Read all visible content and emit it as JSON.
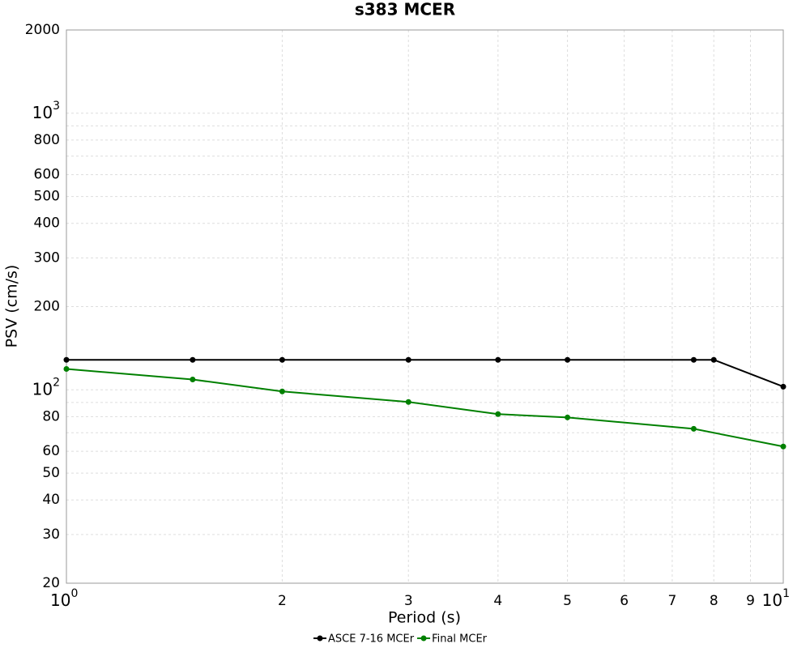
{
  "chart_data": {
    "type": "line",
    "title": "s383 MCER",
    "x_label": "Period (s)",
    "y_label": "PSV (cm/s)",
    "x_scale": "log",
    "y_scale": "log",
    "grid": true,
    "legend": "bottom",
    "xlim": [
      1,
      10
    ],
    "ylim": [
      20,
      2000
    ],
    "xticks": [
      {
        "value": 1,
        "label": "10",
        "exponent": "0"
      },
      2,
      3,
      4,
      5,
      6,
      7,
      8,
      9,
      {
        "value": 10,
        "label": "10",
        "exponent": "1"
      }
    ],
    "yticks": [
      20,
      30,
      40,
      50,
      60,
      80,
      {
        "value": 100,
        "label": "10",
        "exponent": "2"
      },
      200,
      300,
      400,
      500,
      600,
      800,
      {
        "value": 1000,
        "label": "10",
        "exponent": "3"
      },
      2000
    ],
    "y_minor_ticks": [
      70,
      90,
      700,
      900
    ],
    "series": [
      {
        "name": "ASCE 7-16 MCEr",
        "color": "#000000",
        "x": [
          1,
          1.5,
          2,
          3,
          4,
          5,
          7.5,
          8,
          10
        ],
        "values": [
          128.4,
          128.4,
          128.4,
          128.4,
          128.4,
          128.4,
          128.4,
          128.4,
          102.7
        ]
      },
      {
        "name": "Final MCEr",
        "color": "#008000",
        "x": [
          1,
          1.5,
          2,
          3,
          4,
          5,
          7.5,
          10
        ],
        "values": [
          119,
          109,
          98.7,
          90.4,
          81.7,
          79.5,
          72.3,
          62.4
        ]
      }
    ]
  }
}
